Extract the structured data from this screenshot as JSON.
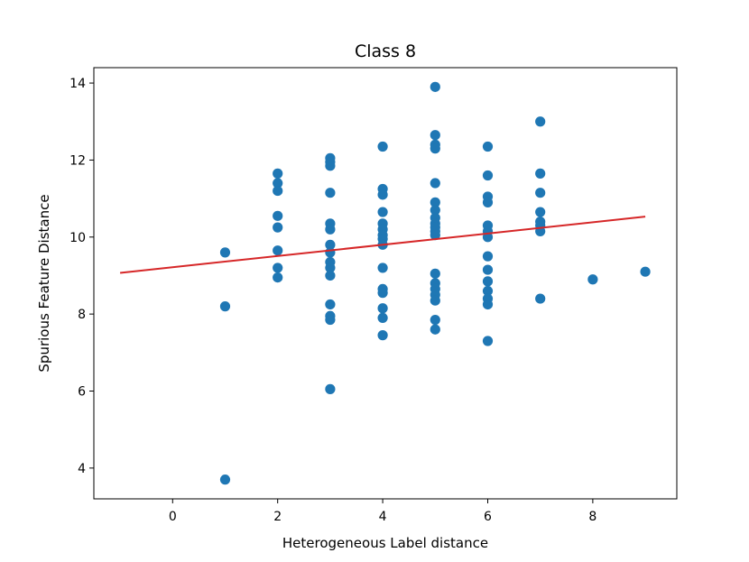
{
  "chart_data": {
    "type": "scatter",
    "title": "Class 8",
    "xlabel": "Heterogeneous Label distance",
    "ylabel": "Spurious Feature Distance",
    "xlim": [
      -1.5,
      9.6
    ],
    "ylim": [
      3.2,
      14.4
    ],
    "xticks": [
      0,
      2,
      4,
      6,
      8
    ],
    "yticks": [
      4,
      6,
      8,
      10,
      12,
      14
    ],
    "grid": false,
    "colors": {
      "points": "#1f77b4",
      "fit_line": "#d62728",
      "axes": "#000000"
    },
    "points": [
      {
        "x": 1,
        "y": 9.6
      },
      {
        "x": 1,
        "y": 8.2
      },
      {
        "x": 1,
        "y": 3.7
      },
      {
        "x": 2,
        "y": 11.65
      },
      {
        "x": 2,
        "y": 11.4
      },
      {
        "x": 2,
        "y": 11.2
      },
      {
        "x": 2,
        "y": 10.55
      },
      {
        "x": 2,
        "y": 10.25
      },
      {
        "x": 2,
        "y": 9.65
      },
      {
        "x": 2,
        "y": 9.2
      },
      {
        "x": 2,
        "y": 8.95
      },
      {
        "x": 3,
        "y": 12.05
      },
      {
        "x": 3,
        "y": 11.95
      },
      {
        "x": 3,
        "y": 11.85
      },
      {
        "x": 3,
        "y": 11.15
      },
      {
        "x": 3,
        "y": 10.35
      },
      {
        "x": 3,
        "y": 10.2
      },
      {
        "x": 3,
        "y": 9.8
      },
      {
        "x": 3,
        "y": 9.6
      },
      {
        "x": 3,
        "y": 9.35
      },
      {
        "x": 3,
        "y": 9.2
      },
      {
        "x": 3,
        "y": 9.0
      },
      {
        "x": 3,
        "y": 8.25
      },
      {
        "x": 3,
        "y": 7.95
      },
      {
        "x": 3,
        "y": 7.85
      },
      {
        "x": 3,
        "y": 6.05
      },
      {
        "x": 4,
        "y": 12.35
      },
      {
        "x": 4,
        "y": 11.25
      },
      {
        "x": 4,
        "y": 11.1
      },
      {
        "x": 4,
        "y": 10.65
      },
      {
        "x": 4,
        "y": 10.35
      },
      {
        "x": 4,
        "y": 10.2
      },
      {
        "x": 4,
        "y": 10.05
      },
      {
        "x": 4,
        "y": 9.95
      },
      {
        "x": 4,
        "y": 9.8
      },
      {
        "x": 4,
        "y": 9.2
      },
      {
        "x": 4,
        "y": 8.65
      },
      {
        "x": 4,
        "y": 8.55
      },
      {
        "x": 4,
        "y": 8.15
      },
      {
        "x": 4,
        "y": 7.9
      },
      {
        "x": 4,
        "y": 7.45
      },
      {
        "x": 5,
        "y": 13.9
      },
      {
        "x": 5,
        "y": 12.65
      },
      {
        "x": 5,
        "y": 12.4
      },
      {
        "x": 5,
        "y": 12.3
      },
      {
        "x": 5,
        "y": 11.4
      },
      {
        "x": 5,
        "y": 10.9
      },
      {
        "x": 5,
        "y": 10.7
      },
      {
        "x": 5,
        "y": 10.5
      },
      {
        "x": 5,
        "y": 10.35
      },
      {
        "x": 5,
        "y": 10.25
      },
      {
        "x": 5,
        "y": 10.15
      },
      {
        "x": 5,
        "y": 10.05
      },
      {
        "x": 5,
        "y": 9.05
      },
      {
        "x": 5,
        "y": 8.8
      },
      {
        "x": 5,
        "y": 8.65
      },
      {
        "x": 5,
        "y": 8.5
      },
      {
        "x": 5,
        "y": 8.35
      },
      {
        "x": 5,
        "y": 7.85
      },
      {
        "x": 5,
        "y": 7.6
      },
      {
        "x": 6,
        "y": 12.35
      },
      {
        "x": 6,
        "y": 11.6
      },
      {
        "x": 6,
        "y": 11.05
      },
      {
        "x": 6,
        "y": 10.9
      },
      {
        "x": 6,
        "y": 10.3
      },
      {
        "x": 6,
        "y": 10.15
      },
      {
        "x": 6,
        "y": 10.0
      },
      {
        "x": 6,
        "y": 9.5
      },
      {
        "x": 6,
        "y": 9.15
      },
      {
        "x": 6,
        "y": 8.85
      },
      {
        "x": 6,
        "y": 8.6
      },
      {
        "x": 6,
        "y": 8.4
      },
      {
        "x": 6,
        "y": 8.25
      },
      {
        "x": 6,
        "y": 7.3
      },
      {
        "x": 7,
        "y": 13.0
      },
      {
        "x": 7,
        "y": 11.65
      },
      {
        "x": 7,
        "y": 11.15
      },
      {
        "x": 7,
        "y": 10.65
      },
      {
        "x": 7,
        "y": 10.4
      },
      {
        "x": 7,
        "y": 10.3
      },
      {
        "x": 7,
        "y": 10.15
      },
      {
        "x": 7,
        "y": 8.4
      },
      {
        "x": 8,
        "y": 8.9
      },
      {
        "x": 9,
        "y": 9.1
      }
    ],
    "fit_line": {
      "x": [
        -1.0,
        9.0
      ],
      "y": [
        9.07,
        10.53
      ]
    }
  }
}
